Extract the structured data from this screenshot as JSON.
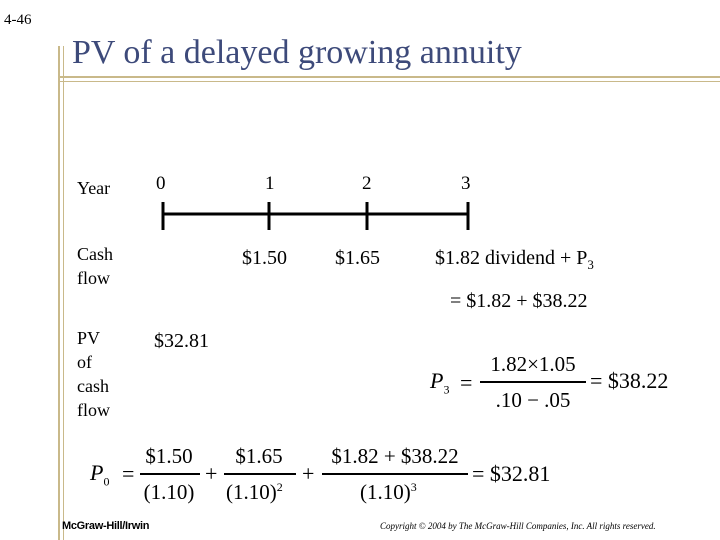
{
  "slide_number": "4-46",
  "title": "PV of a delayed growing annuity",
  "labels": {
    "year": "Year",
    "cash": "Cash",
    "flow": "flow",
    "pv_line1": "PV",
    "pv_line2": "of",
    "pv_line3": "cash",
    "pv_line4": "flow"
  },
  "years": [
    "0",
    "1",
    "2",
    "3"
  ],
  "cash_flows": {
    "y1": "$1.50",
    "y2": "$1.65",
    "y3": "$1.82 dividend + P",
    "y3_sub": "3"
  },
  "p3_breakdown": "= $1.82 + $38.22",
  "pv_value": "$32.81",
  "p3_formula": {
    "lhs": "P",
    "lhs_sub": "3",
    "num": "1.82×1.05",
    "den": ".10 − .05",
    "result": "= $38.22"
  },
  "p0_formula": {
    "lhs": "P",
    "lhs_sub": "0",
    "t1_num": "$1.50",
    "t1_den": "(1.10)",
    "t2_num": "$1.65",
    "t2_den": "(1.10)",
    "t2_exp": "2",
    "t3_num": "$1.82 + $38.22",
    "t3_den": "(1.10)",
    "t3_exp": "3",
    "plus": "+",
    "equals": "=",
    "result": "= $32.81"
  },
  "footer": {
    "publisher": "McGraw-Hill/Irwin",
    "copyright": "Copyright © 2004 by The McGraw-Hill Companies, Inc.  All rights reserved."
  }
}
